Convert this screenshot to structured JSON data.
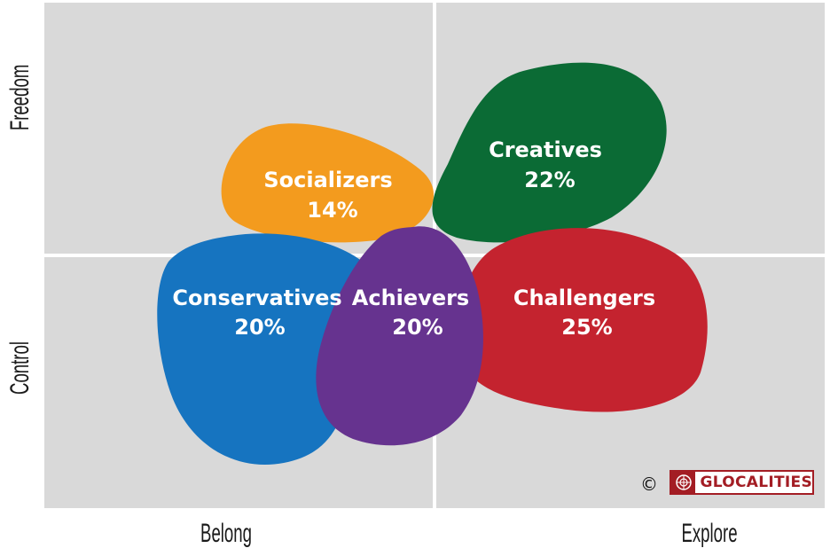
{
  "axes": {
    "top": "Freedom",
    "bottom": "Control",
    "left": "Belong",
    "right": "Explore"
  },
  "segments": [
    {
      "name": "Socializers",
      "percent": "14%",
      "color": "#f39b1e"
    },
    {
      "name": "Creatives",
      "percent": "22%",
      "color": "#0b6b35"
    },
    {
      "name": "Conservatives",
      "percent": "20%",
      "color": "#1674c0"
    },
    {
      "name": "Challengers",
      "percent": "25%",
      "color": "#c4232f"
    },
    {
      "name": "Achievers",
      "percent": "20%",
      "color": "#66338f"
    }
  ],
  "copyright_symbol": "©",
  "logo": {
    "text": "GLOCALITIES",
    "color": "#a31d24",
    "icon": "glocalities-globe-icon"
  },
  "colors": {
    "quadrant_background": "#d9d9d9",
    "divider": "#ffffff"
  }
}
